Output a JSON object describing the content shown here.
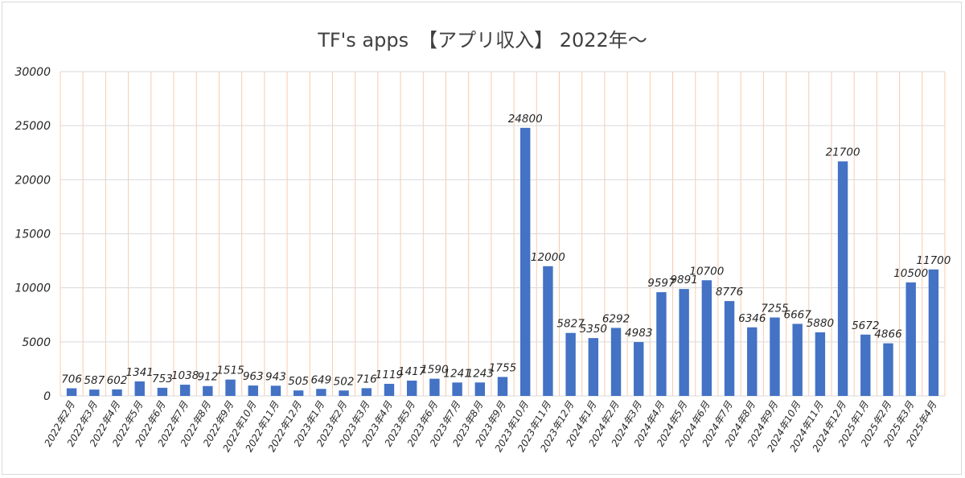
{
  "chart_data": {
    "type": "bar",
    "title": "TF's apps　【アプリ収入】 2022年〜",
    "xlabel": "",
    "ylabel": "",
    "ylim": [
      0,
      30000
    ],
    "yticks": [
      0,
      5000,
      10000,
      15000,
      20000,
      25000,
      30000
    ],
    "categories": [
      "2022年2月",
      "2022年3月",
      "2022年4月",
      "2022年5月",
      "2022年6月",
      "2022年7月",
      "2022年8月",
      "2022年9月",
      "2022年10月",
      "2022年11月",
      "2022年12月",
      "2023年1月",
      "2023年2月",
      "2023年3月",
      "2023年4月",
      "2023年5月",
      "2023年6月",
      "2023年7月",
      "2023年8月",
      "2023年9月",
      "2023年10月",
      "2023年11月",
      "2023年12月",
      "2024年1月",
      "2024年2月",
      "2024年3月",
      "2024年4月",
      "2024年5月",
      "2024年6月",
      "2024年7月",
      "2024年8月",
      "2024年9月",
      "2024年10月",
      "2024年11月",
      "2024年12月",
      "2025年1月",
      "2025年2月",
      "2025年3月",
      "2025年4月"
    ],
    "values": [
      706,
      587,
      602,
      1341,
      753,
      1038,
      912,
      1515,
      963,
      943,
      505,
      649,
      502,
      716,
      1119,
      1417,
      1590,
      1241,
      1243,
      1755,
      24800,
      12000,
      5827,
      5350,
      6292,
      4983,
      9597,
      9891,
      10700,
      8776,
      6346,
      7255,
      6667,
      5880,
      21700,
      5672,
      4866,
      10500,
      11700
    ],
    "grid": true,
    "legend": "none",
    "colors": {
      "bar": "#4472c4",
      "horizontal_grid": "#d9d9d9",
      "vertical_grid": "#f8cbad",
      "text": "#262626",
      "title": "#404040"
    }
  }
}
